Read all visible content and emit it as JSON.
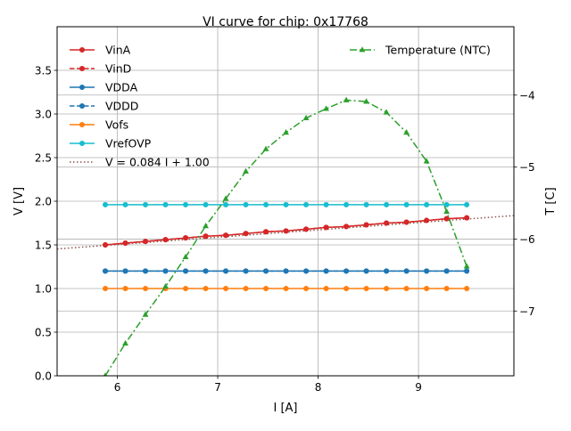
{
  "chart_data": {
    "type": "line",
    "title": "VI curve for chip: 0x17768",
    "xlabel": "I [A]",
    "ylabel": "V [V]",
    "y2label": "T [C]",
    "xlim": [
      5.4,
      9.95
    ],
    "ylim": [
      0.0,
      4.0
    ],
    "y2lim": [
      -7.9,
      -3.05
    ],
    "xticks": [
      6,
      7,
      8,
      9
    ],
    "yticks": [
      0.0,
      0.5,
      1.0,
      1.5,
      2.0,
      2.5,
      3.0,
      3.5
    ],
    "ytick_labels": [
      "0.0",
      "0.5",
      "1.0",
      "1.5",
      "2.0",
      "2.5",
      "3.0",
      "3.5"
    ],
    "y2ticks": [
      -7,
      -6,
      -5,
      -4
    ],
    "y2tick_labels": [
      "−7",
      "−6",
      "−5",
      "−4"
    ],
    "grid": true,
    "x": [
      5.88,
      6.08,
      6.28,
      6.48,
      6.68,
      6.88,
      7.08,
      7.28,
      7.48,
      7.68,
      7.88,
      8.08,
      8.28,
      8.48,
      8.68,
      8.88,
      9.08,
      9.28,
      9.48
    ],
    "series": [
      {
        "name": "VinA",
        "axis": "left",
        "color": "#d62728",
        "linestyle": "solid",
        "marker": "circle",
        "values": [
          1.5,
          1.52,
          1.54,
          1.56,
          1.58,
          1.6,
          1.61,
          1.63,
          1.65,
          1.66,
          1.68,
          1.7,
          1.71,
          1.73,
          1.75,
          1.76,
          1.78,
          1.8,
          1.81
        ]
      },
      {
        "name": "VinD",
        "axis": "left",
        "color": "#d62728",
        "linestyle": "dashed",
        "marker": "circle",
        "values": [
          1.5,
          1.52,
          1.54,
          1.56,
          1.58,
          1.6,
          1.61,
          1.63,
          1.65,
          1.66,
          1.68,
          1.7,
          1.71,
          1.73,
          1.75,
          1.76,
          1.78,
          1.8,
          1.81
        ]
      },
      {
        "name": "VDDA",
        "axis": "left",
        "color": "#1f77b4",
        "linestyle": "solid",
        "marker": "circle",
        "values": [
          1.2,
          1.2,
          1.2,
          1.2,
          1.2,
          1.2,
          1.2,
          1.2,
          1.2,
          1.2,
          1.2,
          1.2,
          1.2,
          1.2,
          1.2,
          1.2,
          1.2,
          1.2,
          1.2
        ]
      },
      {
        "name": "VDDD",
        "axis": "left",
        "color": "#1f77b4",
        "linestyle": "dashed",
        "marker": "circle",
        "values": [
          1.2,
          1.2,
          1.2,
          1.2,
          1.2,
          1.2,
          1.2,
          1.2,
          1.2,
          1.2,
          1.2,
          1.2,
          1.2,
          1.2,
          1.2,
          1.2,
          1.2,
          1.2,
          1.2
        ]
      },
      {
        "name": "Vofs",
        "axis": "left",
        "color": "#ff7f0e",
        "linestyle": "solid",
        "marker": "circle",
        "values": [
          1.0,
          1.0,
          1.0,
          1.0,
          1.0,
          1.0,
          1.0,
          1.0,
          1.0,
          1.0,
          1.0,
          1.0,
          1.0,
          1.0,
          1.0,
          1.0,
          1.0,
          1.0,
          1.0
        ]
      },
      {
        "name": "VrefOVP",
        "axis": "left",
        "color": "#17becf",
        "linestyle": "solid",
        "marker": "circle",
        "values": [
          1.96,
          1.96,
          1.96,
          1.96,
          1.96,
          1.96,
          1.96,
          1.96,
          1.96,
          1.96,
          1.96,
          1.96,
          1.96,
          1.96,
          1.96,
          1.96,
          1.96,
          1.96,
          1.96
        ]
      },
      {
        "name": "Temperature (NTC)",
        "axis": "right",
        "color": "#2ca02c",
        "linestyle": "dashdot",
        "marker": "triangle",
        "values": [
          -7.9,
          -7.45,
          -7.05,
          -6.66,
          -6.25,
          -5.82,
          -5.44,
          -5.06,
          -4.75,
          -4.52,
          -4.32,
          -4.19,
          -4.07,
          -4.09,
          -4.24,
          -4.52,
          -4.92,
          -5.62,
          -6.38
        ]
      }
    ],
    "fit_line": {
      "label": "V = 0.084 I + 1.00",
      "slope": 0.084,
      "intercept": 1.0,
      "color": "#8c564b",
      "linestyle": "dotted"
    },
    "legend_left": [
      "VinA",
      "VinD",
      "VDDA",
      "VDDD",
      "Vofs",
      "VrefOVP",
      "V = 0.084 I + 1.00"
    ],
    "legend_right": [
      "Temperature (NTC)"
    ],
    "legend_placement": "upper-left and upper-right"
  }
}
